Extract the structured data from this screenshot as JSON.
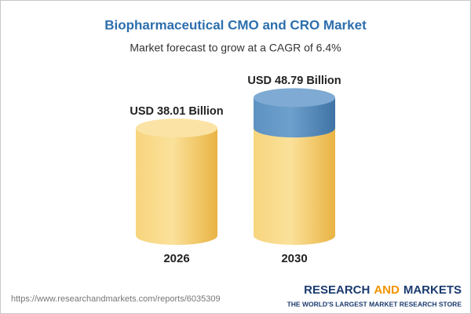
{
  "chart_data": {
    "type": "cylinder",
    "title": "Biopharmaceutical CMO and CRO Market",
    "subtitle": "Market forecast to grow at a CAGR of 6.4%",
    "categories": [
      "2026",
      "2030"
    ],
    "values": [
      38.01,
      48.79
    ],
    "value_labels": [
      "USD 38.01 Billion",
      "USD 48.79 Billion"
    ],
    "colors": [
      "#f4c65a",
      "#4d84b6"
    ],
    "source": "https://www.researchandmarkets.com/reports/6035309",
    "brand": [
      "RESEARCH",
      "AND",
      "MARKETS"
    ],
    "tagline": "THE WORLD'S LARGEST MARKET RESEARCH STORE"
  }
}
